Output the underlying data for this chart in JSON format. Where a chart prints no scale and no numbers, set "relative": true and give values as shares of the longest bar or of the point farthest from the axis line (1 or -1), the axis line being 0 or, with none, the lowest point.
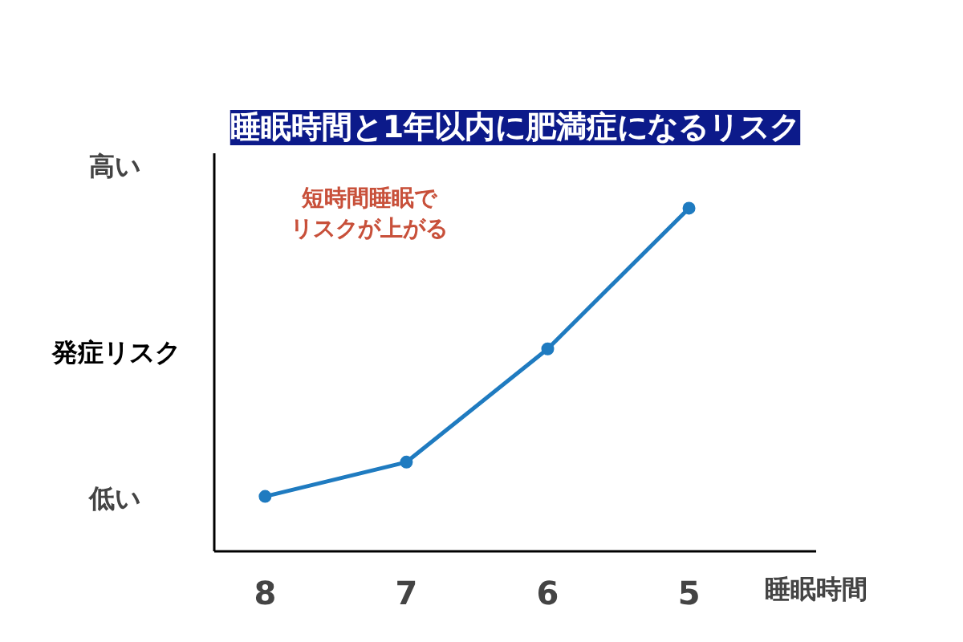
{
  "chart_data": {
    "type": "line",
    "title": "睡眠時間と1年以内に肥満症になるリスク",
    "xlabel": "睡眠時間",
    "ylabel": "発症リスク",
    "categories": [
      "8",
      "7",
      "6",
      "5"
    ],
    "relative": true,
    "series": [
      {
        "color": "#1f7bc0",
        "values": [
          0.16,
          0.26,
          0.59,
          1.0
        ]
      }
    ],
    "marker": "circle",
    "line_style": "solid",
    "grid": false,
    "annotations": [
      "高い",
      "低い",
      "短時間睡眠でリスクが上がる"
    ]
  }
}
